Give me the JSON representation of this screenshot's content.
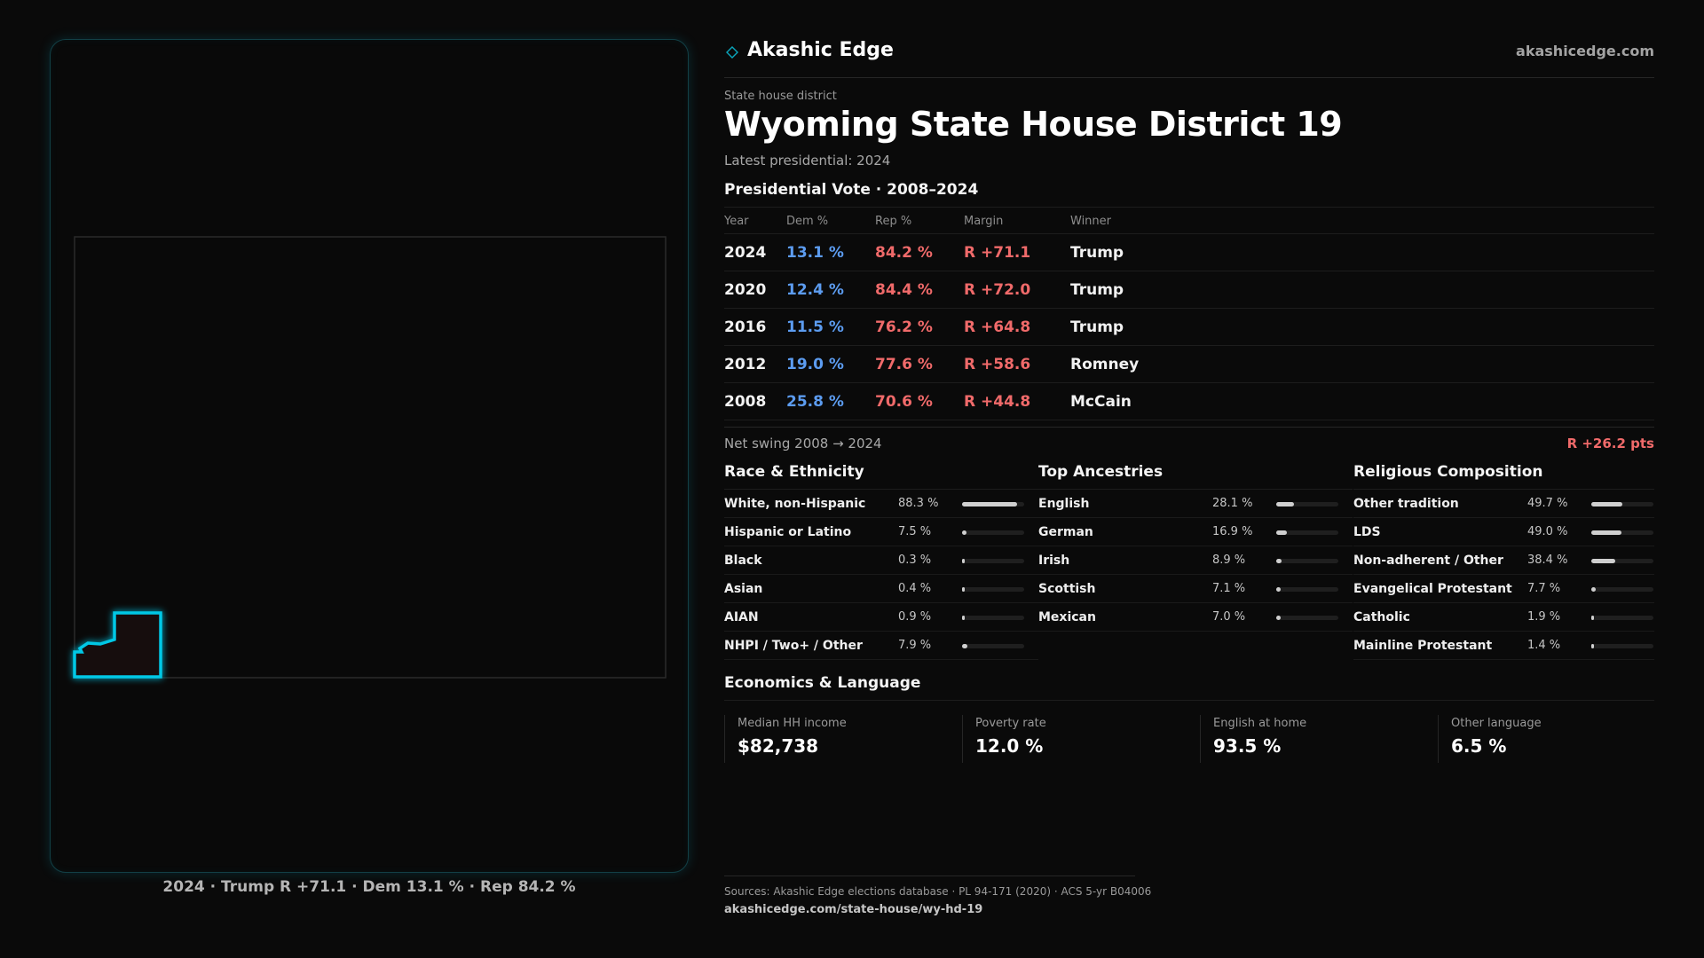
{
  "map": {
    "caption": "2024 · Trump R +71.1 · Dem 13.1 % · Rep 84.2 %",
    "outline_color": "#00c8e6"
  },
  "brand": {
    "name": "Akashic Edge",
    "url": "akashicedge.com",
    "icon": "diamond-icon"
  },
  "header": {
    "eyebrow": "State house district",
    "title": "Wyoming State House District 19",
    "subtitle": "Latest presidential: 2024"
  },
  "presidential": {
    "heading": "Presidential Vote · 2008–2024",
    "columns": [
      "Year",
      "Dem %",
      "Rep %",
      "Margin",
      "Winner"
    ],
    "rows": [
      {
        "year": "2024",
        "dem": "13.1 %",
        "rep": "84.2 %",
        "margin": "R +71.1",
        "winner": "Trump"
      },
      {
        "year": "2020",
        "dem": "12.4 %",
        "rep": "84.4 %",
        "margin": "R +72.0",
        "winner": "Trump"
      },
      {
        "year": "2016",
        "dem": "11.5 %",
        "rep": "76.2 %",
        "margin": "R +64.8",
        "winner": "Trump"
      },
      {
        "year": "2012",
        "dem": "19.0 %",
        "rep": "77.6 %",
        "margin": "R +58.6",
        "winner": "Romney"
      },
      {
        "year": "2008",
        "dem": "25.8 %",
        "rep": "70.6 %",
        "margin": "R +44.8",
        "winner": "McCain"
      }
    ],
    "swing_label": "Net swing 2008 → 2024",
    "swing_value": "R +26.2 pts"
  },
  "demographics": [
    {
      "title": "Race & Ethnicity",
      "rows": [
        {
          "label": "White, non-Hispanic",
          "value": "88.3 %",
          "pct": 88.3
        },
        {
          "label": "Hispanic or Latino",
          "value": "7.5 %",
          "pct": 7.5
        },
        {
          "label": "Black",
          "value": "0.3 %",
          "pct": 0.3
        },
        {
          "label": "Asian",
          "value": "0.4 %",
          "pct": 0.4
        },
        {
          "label": "AIAN",
          "value": "0.9 %",
          "pct": 0.9
        },
        {
          "label": "NHPI / Two+ / Other",
          "value": "7.9 %",
          "pct": 7.9
        }
      ]
    },
    {
      "title": "Top Ancestries",
      "rows": [
        {
          "label": "English",
          "value": "28.1 %",
          "pct": 28.1
        },
        {
          "label": "German",
          "value": "16.9 %",
          "pct": 16.9
        },
        {
          "label": "Irish",
          "value": "8.9 %",
          "pct": 8.9
        },
        {
          "label": "Scottish",
          "value": "7.1 %",
          "pct": 7.1
        },
        {
          "label": "Mexican",
          "value": "7.0 %",
          "pct": 7.0
        }
      ]
    },
    {
      "title": "Religious Composition",
      "rows": [
        {
          "label": "Other tradition",
          "value": "49.7 %",
          "pct": 49.7
        },
        {
          "label": "LDS",
          "value": "49.0 %",
          "pct": 49.0
        },
        {
          "label": "Non-adherent / Other",
          "value": "38.4 %",
          "pct": 38.4
        },
        {
          "label": "Evangelical Protestant",
          "value": "7.7 %",
          "pct": 7.7
        },
        {
          "label": "Catholic",
          "value": "1.9 %",
          "pct": 1.9
        },
        {
          "label": "Mainline Protestant",
          "value": "1.4 %",
          "pct": 1.4
        }
      ]
    }
  ],
  "economics": {
    "title": "Economics & Language",
    "cards": [
      {
        "label": "Median HH income",
        "value": "$82,738"
      },
      {
        "label": "Poverty rate",
        "value": "12.0 %"
      },
      {
        "label": "English at home",
        "value": "93.5 %"
      },
      {
        "label": "Other language",
        "value": "6.5 %"
      }
    ]
  },
  "footer": {
    "sources": "Sources: Akashic Edge elections database · PL 94-171 (2020) · ACS 5-yr B04006",
    "link": "akashicedge.com/state-house/wy-hd-19"
  },
  "colors": {
    "dem": "#5c9cf0",
    "rep": "#f06a6a",
    "accent": "#00c8e6"
  }
}
